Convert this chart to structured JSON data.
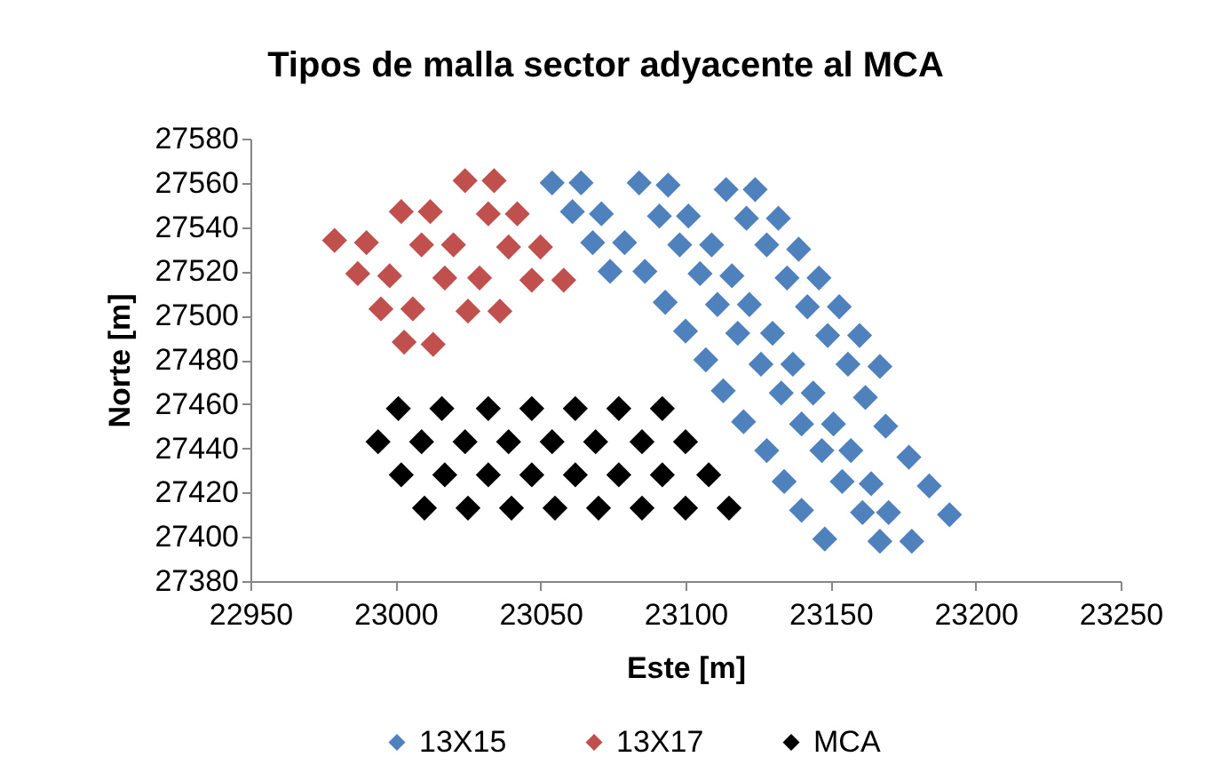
{
  "chart_data": {
    "type": "scatter",
    "title": "Tipos de malla sector adyacente al MCA",
    "xlabel": "Este [m]",
    "ylabel": "Norte [m]",
    "xlim": [
      22950,
      23250
    ],
    "xticks": [
      22950,
      23000,
      23050,
      23100,
      23150,
      23200,
      23250
    ],
    "ylim": [
      27380,
      27580
    ],
    "yticks": [
      27380,
      27400,
      27420,
      27440,
      27460,
      27480,
      27500,
      27520,
      27540,
      27560,
      27580
    ],
    "legend": "bottom",
    "marker": "diamond",
    "series": [
      {
        "name": "13X15",
        "color": "#4f81bd",
        "x": [
          23054,
          23064,
          23061,
          23071,
          23068,
          23079,
          23074,
          23086,
          23093,
          23100,
          23107,
          23113,
          23120,
          23128,
          23134,
          23140,
          23148,
          23084,
          23094,
          23091,
          23101,
          23098,
          23109,
          23105,
          23116,
          23111,
          23122,
          23118,
          23130,
          23126,
          23137,
          23133,
          23144,
          23140,
          23151,
          23147,
          23157,
          23154,
          23164,
          23161,
          23170,
          23167,
          23178,
          23114,
          23124,
          23121,
          23132,
          23128,
          23139,
          23135,
          23146,
          23142,
          23153,
          23149,
          23160,
          23156,
          23167,
          23162,
          23169,
          23177,
          23184,
          23191
        ],
        "values": [
          27560,
          27560,
          27547,
          27546,
          27533,
          27533,
          27520,
          27520,
          27506,
          27493,
          27480,
          27466,
          27452,
          27439,
          27425,
          27412,
          27399,
          27560,
          27559,
          27545,
          27545,
          27532,
          27532,
          27519,
          27518,
          27505,
          27505,
          27492,
          27492,
          27478,
          27478,
          27465,
          27465,
          27451,
          27451,
          27439,
          27439,
          27425,
          27424,
          27411,
          27411,
          27398,
          27398,
          27557,
          27557,
          27544,
          27544,
          27532,
          27530,
          27517,
          27517,
          27504,
          27504,
          27491,
          27491,
          27478,
          27477,
          27463,
          27450,
          27436,
          27423,
          27410
        ]
      },
      {
        "name": "13X17",
        "color": "#c0504d",
        "x": [
          22979,
          22990,
          22987,
          22998,
          22995,
          23006,
          23003,
          23013,
          23002,
          23012,
          23009,
          23020,
          23017,
          23029,
          23025,
          23036,
          23024,
          23034,
          23032,
          23042,
          23039,
          23050,
          23047,
          23058
        ],
        "values": [
          27534,
          27533,
          27519,
          27518,
          27503,
          27503,
          27488,
          27487,
          27547,
          27547,
          27532,
          27532,
          27517,
          27517,
          27502,
          27502,
          27561,
          27561,
          27546,
          27546,
          27531,
          27531,
          27516,
          27516
        ]
      },
      {
        "name": "MCA",
        "color": "#000000",
        "x": [
          23001,
          23016,
          23032,
          23047,
          23062,
          23077,
          23092,
          22994,
          23009,
          23024,
          23039,
          23054,
          23069,
          23085,
          23100,
          23002,
          23017,
          23032,
          23047,
          23062,
          23077,
          23092,
          23108,
          23010,
          23025,
          23040,
          23055,
          23070,
          23085,
          23100,
          23115
        ],
        "values": [
          27458,
          27458,
          27458,
          27458,
          27458,
          27458,
          27458,
          27443,
          27443,
          27443,
          27443,
          27443,
          27443,
          27443,
          27443,
          27428,
          27428,
          27428,
          27428,
          27428,
          27428,
          27428,
          27428,
          27413,
          27413,
          27413,
          27413,
          27413,
          27413,
          27413,
          27413
        ]
      }
    ]
  }
}
